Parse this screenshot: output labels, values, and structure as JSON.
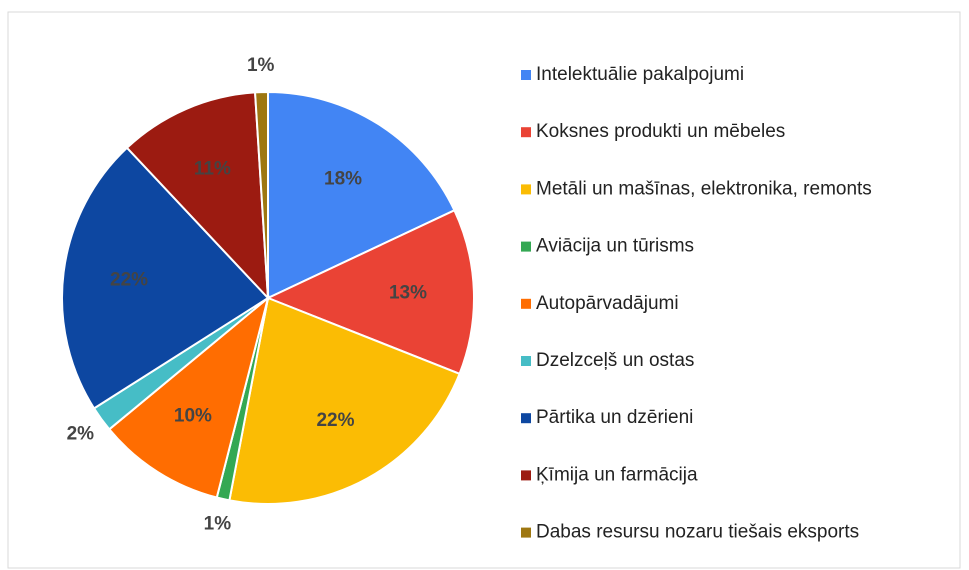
{
  "chart_data": {
    "type": "pie",
    "categories": [
      "Intelektuālie pakalpojumi",
      "Koksnes produkti un mēbeles",
      "Metāli un mašīnas, elektronika, remonts",
      "Aviācija un tūrisms",
      "Autopārvadājumi",
      "Dzelzceļš un ostas",
      "Pārtika un dzērieni",
      "Ķīmija un farmācija",
      "Dabas resursu nozaru tiešais eksports"
    ],
    "values": [
      18,
      13,
      22,
      1,
      10,
      2,
      22,
      11,
      1
    ],
    "value_labels": [
      "18%",
      "13%",
      "22%",
      "1%",
      "10%",
      "2%",
      "22%",
      "11%",
      "1%"
    ],
    "colors": [
      "#4285f4",
      "#ea4335",
      "#fbbc04",
      "#34a853",
      "#ff6d01",
      "#46bdc6",
      "#0d47a1",
      "#9c1b11",
      "#9e7711"
    ],
    "legend": "right"
  }
}
